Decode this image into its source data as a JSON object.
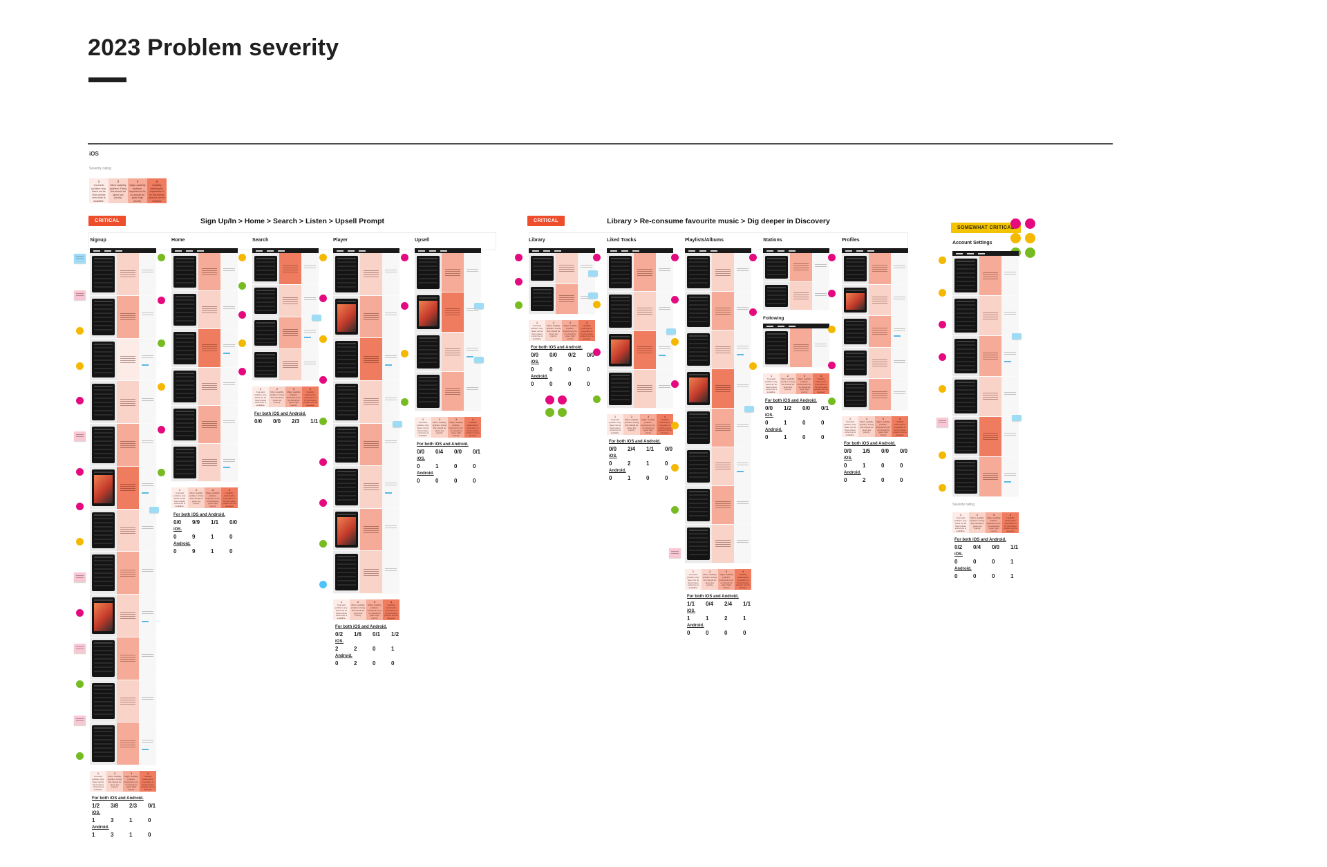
{
  "page": {
    "title": "2023 Problem severity",
    "platform_label": "iOS"
  },
  "palette": {
    "accent_red": "#ee4e2c",
    "accent_yellow": "#f3c300",
    "magenta": "#e5097f",
    "yellow": "#f5b800",
    "green": "#76bc21",
    "blue": "#4fc3f7",
    "pink-note": "#f9c7d4",
    "cyan-note": "#9edcf5",
    "heat1": "#fcebe7",
    "heat2": "#f9d2c8",
    "heat3": "#f5ab97",
    "heat4": "#ef7c5e"
  },
  "legend": {
    "label": "Severity rating",
    "levels": [
      {
        "num": "1",
        "text": "Cosmetic problem only. Need not be fixed unless extra time is available.",
        "heat": 1
      },
      {
        "num": "2",
        "text": "Minor usability problem. Fixing this should be given low priority.",
        "heat": 2
      },
      {
        "num": "3",
        "text": "Major usability problem. Important to fix, so should be given high priority.",
        "heat": 3
      },
      {
        "num": "4",
        "text": "Usability catastrophe. Imperative to fix this before product can be released.",
        "heat": 4
      }
    ]
  },
  "stats_labels": {
    "both": "For both iOS and Android.",
    "ios": "iOS.",
    "android": "Android."
  },
  "sections": [
    {
      "id": "critical-signup-flow",
      "badge": {
        "label": "CRITICAL",
        "bg": "#ee4e2c",
        "fg": "#ffffff"
      },
      "title": "Sign Up/In > Home > Search > Listen > Upsell Prompt",
      "columns": [
        {
          "name": "Signup",
          "heats": [
            2,
            3,
            1,
            2,
            3,
            4,
            2,
            3,
            2,
            3,
            2,
            3
          ],
          "art_rows": [
            5,
            8
          ],
          "chips": 1,
          "gutter": [
            "cyan-note",
            "pink-note",
            "yellow",
            "yellow",
            "magenta",
            "pink-note",
            "magenta",
            "magenta",
            "yellow",
            "pink-note",
            "magenta",
            "pink-note",
            "green",
            "pink-note",
            "green"
          ],
          "stats": {
            "both": [
              "1/2",
              "3/8",
              "2/3",
              "0/1"
            ],
            "ios": [
              "1",
              "3",
              "1",
              "0"
            ],
            "android": [
              "1",
              "3",
              "1",
              "0"
            ]
          }
        },
        {
          "name": "Home",
          "heats": [
            3,
            2,
            4,
            2,
            3,
            2
          ],
          "art_rows": [],
          "chips": 0,
          "gutter": [
            "green",
            "magenta",
            "green",
            "yellow",
            "magenta",
            "green"
          ],
          "stats": {
            "both": [
              "0/0",
              "9/9",
              "1/1",
              "0/0"
            ],
            "ios": [
              "0",
              "9",
              "1",
              "0"
            ],
            "android": [
              "0",
              "9",
              "1",
              "0"
            ]
          }
        },
        {
          "name": "Search",
          "heats": [
            4,
            2,
            3,
            2
          ],
          "art_rows": [],
          "chips": 1,
          "gutter": [
            "yellow",
            "green",
            "magenta",
            "yellow",
            "magenta"
          ],
          "stats": {
            "both": [
              "0/0",
              "0/0",
              "2/3",
              "1/1"
            ]
          }
        },
        {
          "name": "Player",
          "heats": [
            2,
            3,
            4,
            2,
            3,
            2,
            3,
            2
          ],
          "art_rows": [
            1,
            6
          ],
          "chips": 1,
          "gutter": [
            "yellow",
            "magenta",
            "yellow",
            "magenta",
            "green",
            "magenta",
            "magenta",
            "green",
            "blue"
          ],
          "stats": {
            "both": [
              "0/2",
              "1/6",
              "0/1",
              "1/2"
            ],
            "ios": [
              "2",
              "2",
              "0",
              "1"
            ],
            "android": [
              "0",
              "2",
              "0",
              "0"
            ]
          }
        },
        {
          "name": "Upsell",
          "heats": [
            3,
            4,
            2,
            3
          ],
          "art_rows": [
            1
          ],
          "chips": 2,
          "gutter": [
            "magenta",
            "magenta",
            "yellow",
            "green"
          ],
          "stats": {
            "both": [
              "0/0",
              "0/4",
              "0/0",
              "0/1"
            ],
            "ios": [
              "0",
              "1",
              "0",
              "0"
            ],
            "android": [
              "0",
              "0",
              "0",
              "0"
            ]
          }
        }
      ]
    },
    {
      "id": "critical-library-flow",
      "badge": {
        "label": "CRITICAL",
        "bg": "#ee4e2c",
        "fg": "#ffffff"
      },
      "title": "Library > Re-consume favourite music > Dig deeper in Discovery",
      "columns": [
        {
          "name": "Library",
          "heats": [
            2,
            3
          ],
          "art_rows": [],
          "chips": 2,
          "gutter": [
            "magenta",
            "magenta",
            "green"
          ],
          "stats": {
            "both": [
              "0/0",
              "0/0",
              "0/2",
              "0/0"
            ],
            "ios": [
              "0",
              "0",
              "0",
              "0"
            ],
            "android": [
              "0",
              "0",
              "0",
              "0"
            ]
          },
          "dots_below": [
            "magenta",
            "magenta",
            "green",
            "green"
          ]
        },
        {
          "name": "Liked Tracks",
          "heats": [
            3,
            2,
            4,
            2
          ],
          "art_rows": [
            2
          ],
          "chips": 1,
          "gutter": [
            "magenta",
            "yellow",
            "magenta",
            "green"
          ],
          "stats": {
            "both": [
              "0/0",
              "2/4",
              "1/1",
              "0/0"
            ],
            "ios": [
              "0",
              "2",
              "1",
              "0"
            ],
            "android": [
              "0",
              "1",
              "0",
              "0"
            ]
          }
        },
        {
          "name": "Playlists/Albums",
          "heats": [
            2,
            3,
            2,
            4,
            3,
            2,
            3,
            2
          ],
          "art_rows": [
            3
          ],
          "chips": 1,
          "gutter": [
            "magenta",
            "magenta",
            "yellow",
            "magenta",
            "yellow",
            "yellow",
            "green",
            "pink-note"
          ],
          "stats": {
            "both": [
              "1/1",
              "0/4",
              "2/4",
              "1/1"
            ],
            "ios": [
              "1",
              "1",
              "2",
              "1"
            ],
            "android": [
              "0",
              "0",
              "0",
              "0"
            ]
          }
        },
        {
          "name": "Stations",
          "heats": [
            3,
            2
          ],
          "art_rows": [],
          "chips": 0,
          "sub_label": "Following",
          "heats2": [
            3
          ],
          "gutter": [
            "magenta",
            "magenta",
            "yellow"
          ],
          "stats": {
            "both": [
              "0/0",
              "1/2",
              "0/0",
              "0/1"
            ],
            "ios": [
              "0",
              "1",
              "0",
              "0"
            ],
            "android": [
              "0",
              "1",
              "0",
              "0"
            ]
          }
        },
        {
          "name": "Profiles",
          "heats": [
            3,
            2,
            3,
            2,
            3
          ],
          "art_rows": [
            1
          ],
          "chips": 0,
          "gutter": [
            "magenta",
            "magenta",
            "yellow",
            "magenta",
            "green"
          ],
          "stats": {
            "both": [
              "0/0",
              "1/5",
              "0/0",
              "0/0"
            ],
            "ios": [
              "0",
              "1",
              "0",
              "0"
            ],
            "android": [
              "0",
              "2",
              "0",
              "0"
            ]
          }
        }
      ]
    },
    {
      "id": "somewhat-critical-account",
      "badge": {
        "label": "SOMEWHAT CRITICAL",
        "bg": "#f3c300",
        "fg": "#332a00"
      },
      "title": "",
      "dot_cluster": [
        "magenta",
        "magenta",
        "yellow",
        "yellow",
        "green",
        "green"
      ],
      "columns": [
        {
          "name": "Account Settings",
          "heats": [
            3,
            2,
            3,
            2,
            4,
            3
          ],
          "art_rows": [],
          "chips": 2,
          "gutter": [
            "yellow",
            "yellow",
            "magenta",
            "magenta",
            "yellow",
            "pink-note",
            "yellow",
            "yellow"
          ],
          "strip_label": "Severity rating",
          "stats": {
            "both": [
              "0/2",
              "0/4",
              "0/0",
              "1/1"
            ],
            "ios": [
              "0",
              "0",
              "0",
              "1"
            ],
            "android": [
              "0",
              "0",
              "0",
              "1"
            ]
          }
        }
      ]
    }
  ]
}
